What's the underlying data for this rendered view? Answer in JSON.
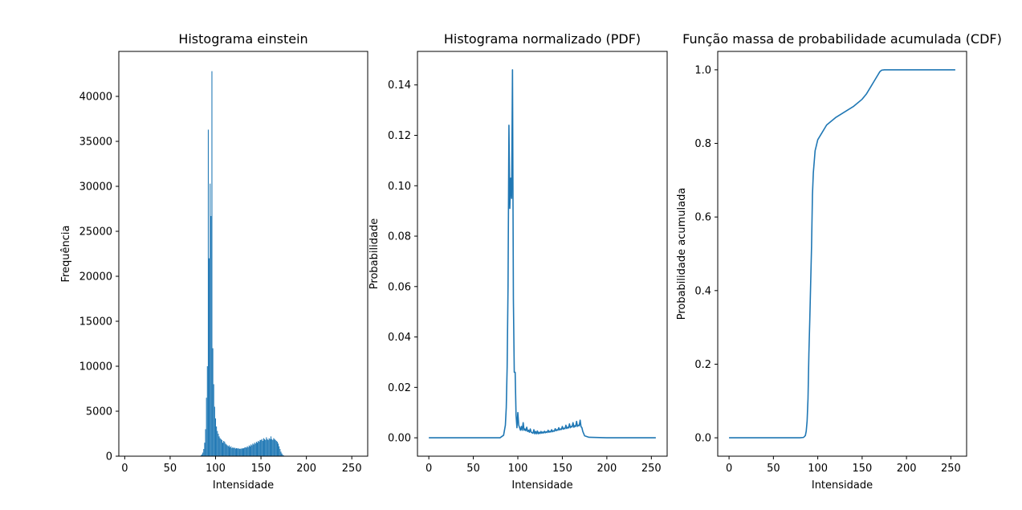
{
  "chart_data": [
    {
      "type": "bar",
      "title": "Histograma einstein",
      "xlabel": "Intensidade",
      "ylabel": "Frequência",
      "xlim": [
        -6.5,
        267.5
      ],
      "ylim": [
        0,
        45000
      ],
      "xticks": [
        0,
        50,
        100,
        150,
        200,
        250
      ],
      "yticks": [
        0,
        5000,
        10000,
        15000,
        20000,
        25000,
        30000,
        35000,
        40000
      ],
      "color": "#1f77b4",
      "x": [
        84,
        85,
        86,
        87,
        88,
        89,
        90,
        91,
        92,
        93,
        94,
        95,
        96,
        97,
        98,
        99,
        100,
        101,
        102,
        103,
        104,
        105,
        106,
        107,
        108,
        109,
        110,
        111,
        112,
        113,
        114,
        115,
        116,
        117,
        118,
        119,
        120,
        121,
        122,
        123,
        124,
        125,
        126,
        127,
        128,
        129,
        130,
        131,
        132,
        133,
        134,
        135,
        136,
        137,
        138,
        139,
        140,
        141,
        142,
        143,
        144,
        145,
        146,
        147,
        148,
        149,
        150,
        151,
        152,
        153,
        154,
        155,
        156,
        157,
        158,
        159,
        160,
        161,
        162,
        163,
        164,
        165,
        166,
        167,
        168,
        169,
        170,
        171,
        172,
        173,
        174,
        175,
        176,
        177,
        178,
        179,
        180
      ],
      "values": [
        100,
        200,
        400,
        800,
        1500,
        3000,
        6500,
        10000,
        36300,
        22000,
        30300,
        26700,
        42800,
        12000,
        8000,
        5500,
        4200,
        3300,
        2800,
        2500,
        2200,
        2000,
        1900,
        1800,
        1500,
        1700,
        1600,
        1400,
        1300,
        1200,
        1100,
        1200,
        1000,
        1100,
        900,
        1000,
        900,
        950,
        850,
        900,
        850,
        900,
        800,
        850,
        800,
        900,
        850,
        900,
        950,
        1000,
        950,
        1100,
        1000,
        1200,
        1100,
        1300,
        1200,
        1400,
        1300,
        1500,
        1400,
        1600,
        1500,
        1700,
        1600,
        1800,
        1800,
        1900,
        1700,
        2000,
        1900,
        1800,
        2100,
        1900,
        1800,
        2000,
        1900,
        2200,
        1900,
        1800,
        2000,
        1900,
        1800,
        1700,
        1600,
        1400,
        1100,
        800,
        500,
        300,
        150,
        80,
        40,
        20,
        10,
        5,
        2
      ]
    },
    {
      "type": "line",
      "title": "Histograma normalizado (PDF)",
      "xlabel": "Intensidade",
      "ylabel": "Probabilidade",
      "xlim": [
        -12.75,
        267.75
      ],
      "ylim": [
        -0.0073,
        0.1533
      ],
      "xticks": [
        0,
        50,
        100,
        150,
        200,
        250
      ],
      "yticks": [
        0.0,
        0.02,
        0.04,
        0.06,
        0.08,
        0.1,
        0.12,
        0.14
      ],
      "ytick_labels": [
        "0.00",
        "0.02",
        "0.04",
        "0.06",
        "0.08",
        "0.10",
        "0.12",
        "0.14"
      ],
      "color": "#1f77b4",
      "series": [
        {
          "x": [
            0,
            80,
            84,
            86,
            87,
            88,
            89,
            90,
            91,
            92,
            93,
            94,
            95,
            96,
            97,
            98,
            99,
            100,
            101,
            102,
            103,
            104,
            105,
            106,
            107,
            108,
            109,
            110,
            111,
            112,
            113,
            114,
            115,
            116,
            117,
            118,
            119,
            120,
            121,
            122,
            123,
            124,
            125,
            126,
            127,
            128,
            129,
            130,
            131,
            132,
            133,
            134,
            135,
            136,
            137,
            138,
            139,
            140,
            141,
            142,
            143,
            144,
            145,
            146,
            147,
            148,
            149,
            150,
            151,
            152,
            153,
            154,
            155,
            156,
            157,
            158,
            159,
            160,
            161,
            162,
            163,
            164,
            165,
            166,
            167,
            168,
            169,
            170,
            171,
            172,
            173,
            175,
            180,
            200,
            255
          ],
          "y": [
            0,
            0,
            0.001,
            0.005,
            0.012,
            0.028,
            0.06,
            0.124,
            0.091,
            0.103,
            0.095,
            0.146,
            0.055,
            0.026,
            0.026,
            0.009,
            0.004,
            0.01,
            0.005,
            0.004,
            0.003,
            0.0045,
            0.003,
            0.006,
            0.003,
            0.0035,
            0.0028,
            0.0042,
            0.0025,
            0.003,
            0.0022,
            0.0035,
            0.0022,
            0.002,
            0.0018,
            0.0032,
            0.0016,
            0.0025,
            0.0016,
            0.0027,
            0.0016,
            0.0022,
            0.0017,
            0.0025,
            0.0018,
            0.0023,
            0.0019,
            0.0026,
            0.002,
            0.0024,
            0.0021,
            0.003,
            0.0022,
            0.0026,
            0.0023,
            0.0032,
            0.0024,
            0.0028,
            0.0026,
            0.0036,
            0.0028,
            0.0032,
            0.003,
            0.004,
            0.0031,
            0.0035,
            0.0033,
            0.0045,
            0.0034,
            0.0038,
            0.0036,
            0.005,
            0.0037,
            0.0042,
            0.0039,
            0.0055,
            0.004,
            0.0045,
            0.0043,
            0.006,
            0.0042,
            0.0048,
            0.0045,
            0.0065,
            0.0045,
            0.005,
            0.0048,
            0.007,
            0.0044,
            0.004,
            0.0025,
            0.0008,
            0.0002,
            0,
            0
          ]
        }
      ]
    },
    {
      "type": "line",
      "title": "Função massa de probabilidade acumulada  (CDF)",
      "xlabel": "Intensidade",
      "ylabel": "Probabilidade acumulada",
      "xlim": [
        -12.75,
        267.75
      ],
      "ylim": [
        -0.05,
        1.05
      ],
      "xticks": [
        0,
        50,
        100,
        150,
        200,
        250
      ],
      "yticks": [
        0.0,
        0.2,
        0.4,
        0.6,
        0.8,
        1.0
      ],
      "ytick_labels": [
        "0.0",
        "0.2",
        "0.4",
        "0.6",
        "0.8",
        "1.0"
      ],
      "color": "#1f77b4",
      "series": [
        {
          "x": [
            0,
            80,
            84,
            86,
            87,
            88,
            89,
            90,
            91,
            92,
            93,
            94,
            95,
            96,
            97,
            98,
            100,
            105,
            110,
            120,
            130,
            140,
            150,
            155,
            160,
            165,
            170,
            172,
            175,
            180,
            200,
            255
          ],
          "y": [
            0,
            0,
            0.001,
            0.006,
            0.018,
            0.046,
            0.106,
            0.23,
            0.32,
            0.42,
            0.52,
            0.66,
            0.72,
            0.75,
            0.78,
            0.79,
            0.81,
            0.83,
            0.85,
            0.87,
            0.885,
            0.9,
            0.92,
            0.935,
            0.955,
            0.975,
            0.995,
            0.999,
            1.0,
            1.0,
            1.0,
            1.0
          ]
        }
      ]
    }
  ]
}
